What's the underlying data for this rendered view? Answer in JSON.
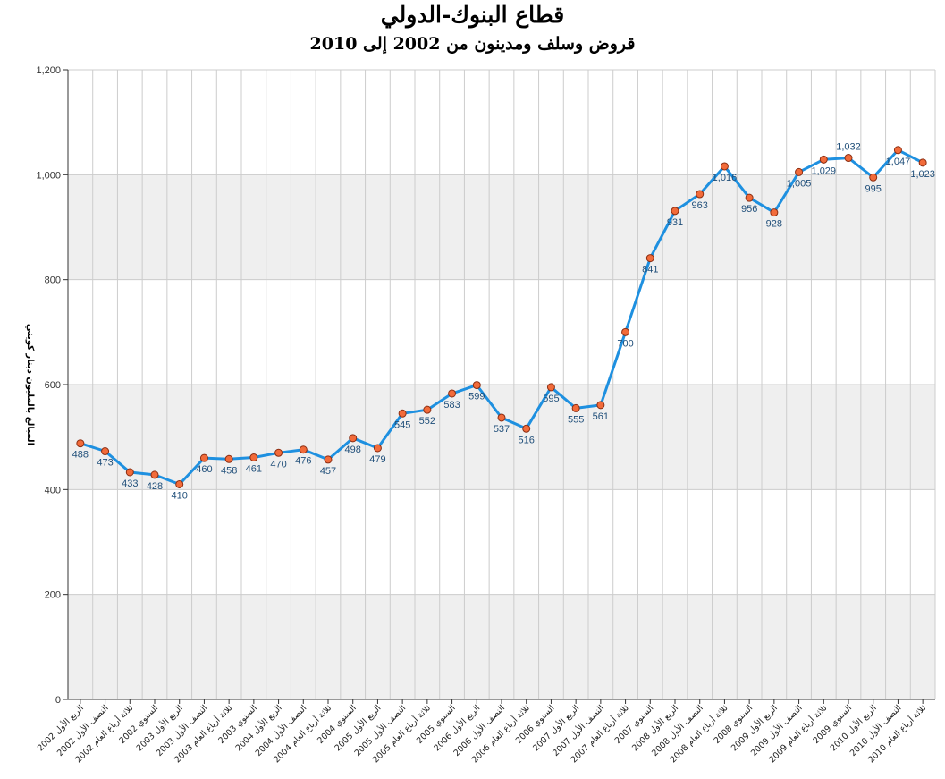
{
  "chart_data": {
    "type": "line",
    "title": "قطاع البنوك-الدولي",
    "subtitle": "قروض وسلف ومدينون من 2002 إلى 2010",
    "ylabel": "المبالغ بالمليون دينار كويتي",
    "xlabel": "",
    "ylim": [
      0,
      1200
    ],
    "yticks": [
      "0",
      "200",
      "400",
      "600",
      "800",
      "1,000",
      "1,200"
    ],
    "ytick_values": [
      0,
      200,
      400,
      600,
      800,
      1000,
      1200
    ],
    "grid": true,
    "legend": "none",
    "colors": {
      "line": "#1e90e0",
      "marker_fill": "#f26b3a",
      "marker_stroke": "#8b2c10",
      "band": "#efefef",
      "grid": "#cccccc"
    },
    "categories": [
      "الربع الأول 2002",
      "النصف الأول 2002",
      "ثلاثة أرباع العام 2002",
      "السنوي 2002",
      "الربع الأول 2003",
      "النصف الأول 2003",
      "ثلاثة أرباع العام 2003",
      "السنوي 2003",
      "الربع الأول 2004",
      "النصف الأول 2004",
      "ثلاثة أرباع العام 2004",
      "السنوي 2004",
      "الربع الأول 2005",
      "النصف الأول 2005",
      "ثلاثة أرباع العام 2005",
      "السنوي 2005",
      "الربع الأول 2006",
      "النصف الأول 2006",
      "ثلاثة أرباع العام 2006",
      "السنوي 2006",
      "الربع الأول 2007",
      "النصف الأول 2007",
      "ثلاثة أرباع العام 2007",
      "السنوي 2007",
      "الربع الأول 2008",
      "النصف الأول 2008",
      "ثلاثة أرباع العام 2008",
      "السنوي 2008",
      "الربع الأول 2009",
      "النصف الأول 2009",
      "ثلاثة أرباع العام 2009",
      "السنوي 2009",
      "الربع الأول 2010",
      "النصف الأول 2010",
      "ثلاثة أرباع العام 2010"
    ],
    "values": [
      488,
      473,
      433,
      428,
      410,
      460,
      458,
      461,
      470,
      476,
      457,
      498,
      479,
      545,
      552,
      583,
      599,
      537,
      516,
      595,
      555,
      561,
      700,
      841,
      931,
      963,
      1016,
      956,
      928,
      1005,
      1029,
      1032,
      995,
      1047,
      1023
    ],
    "value_labels": [
      "488",
      "473",
      "433",
      "428",
      "410",
      "460",
      "458",
      "461",
      "470",
      "476",
      "457",
      "498",
      "479",
      "545",
      "552",
      "583",
      "599",
      "537",
      "516",
      "595",
      "555",
      "561",
      "700",
      "841",
      "931",
      "963",
      "1,016",
      "956",
      "928",
      "1,005",
      "1,029",
      "1,032",
      "995",
      "1,047",
      "1,023"
    ],
    "label_position": [
      "below",
      "below",
      "below",
      "below",
      "below",
      "below",
      "below",
      "below",
      "below",
      "below",
      "below",
      "below",
      "below",
      "below",
      "below",
      "below",
      "below",
      "below",
      "below",
      "below",
      "below",
      "below",
      "below",
      "below",
      "below",
      "below",
      "below",
      "below",
      "below",
      "below",
      "below",
      "above",
      "below",
      "below",
      "below"
    ]
  }
}
